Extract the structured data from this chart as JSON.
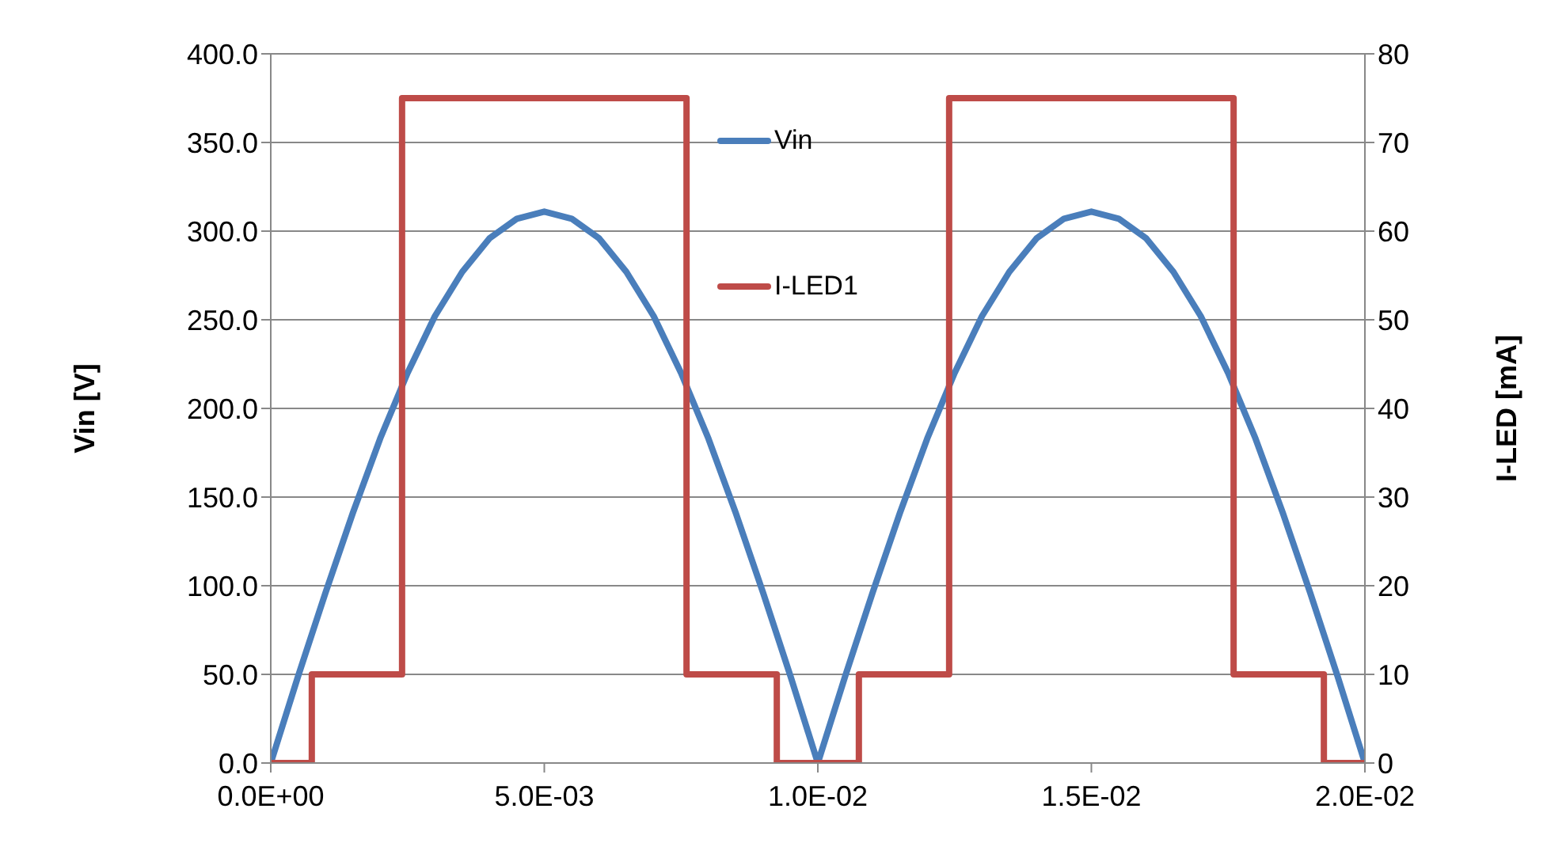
{
  "chart_data": {
    "type": "line",
    "xlabel": null,
    "ylabel": "Vin [V]",
    "y2label": "I-LED [mA]",
    "xlim": [
      0,
      0.02
    ],
    "xticks": [
      {
        "value": 0,
        "label": "0.0E+00"
      },
      {
        "value": 0.005,
        "label": "5.0E-03"
      },
      {
        "value": 0.01,
        "label": "1.0E-02"
      },
      {
        "value": 0.015,
        "label": "1.5E-02"
      },
      {
        "value": 0.02,
        "label": "2.0E-02"
      }
    ],
    "ylim": [
      0,
      400
    ],
    "yticks": [
      {
        "value": 0,
        "label": "0.0"
      },
      {
        "value": 50,
        "label": "50.0"
      },
      {
        "value": 100,
        "label": "100.0"
      },
      {
        "value": 150,
        "label": "150.0"
      },
      {
        "value": 200,
        "label": "200.0"
      },
      {
        "value": 250,
        "label": "250.0"
      },
      {
        "value": 300,
        "label": "300.0"
      },
      {
        "value": 350,
        "label": "350.0"
      },
      {
        "value": 400,
        "label": "400.0"
      }
    ],
    "y2lim": [
      0,
      80
    ],
    "y2ticks": [
      0,
      10,
      20,
      30,
      40,
      50,
      60,
      70,
      80
    ],
    "grid": "y",
    "legend": "top",
    "marker": "none",
    "line_style": "solid",
    "series": [
      {
        "name": "Vin",
        "color": "#4a7ebb",
        "x": [
          0,
          0.0005,
          0.001,
          0.0015,
          0.002,
          0.0025,
          0.003,
          0.0035,
          0.004,
          0.0045,
          0.005,
          0.0055,
          0.006,
          0.0065,
          0.007,
          0.0075,
          0.008,
          0.0085,
          0.009,
          0.0095,
          0.01,
          0.0105,
          0.011,
          0.0115,
          0.012,
          0.0125,
          0.013,
          0.0135,
          0.014,
          0.0145,
          0.015,
          0.0155,
          0.016,
          0.0165,
          0.017,
          0.0175,
          0.018,
          0.0185,
          0.019,
          0.0195,
          0.02
        ],
        "values": [
          0,
          49,
          96,
          141,
          183,
          220,
          252,
          277,
          296,
          307,
          311,
          307,
          296,
          277,
          252,
          220,
          183,
          141,
          96,
          49,
          0,
          49,
          96,
          141,
          183,
          220,
          252,
          277,
          296,
          307,
          311,
          307,
          296,
          277,
          252,
          220,
          183,
          141,
          96,
          49,
          0
        ]
      },
      {
        "name": "I-LED1",
        "type": "step",
        "axis": "y2",
        "color": "#be4b48",
        "x": [
          0,
          0.00075,
          0.0024,
          0.0076,
          0.00925,
          0.01075,
          0.0124,
          0.0176,
          0.01925,
          0.02
        ],
        "values": [
          0,
          10,
          75,
          10,
          0,
          10,
          75,
          10,
          0,
          0
        ]
      }
    ]
  }
}
